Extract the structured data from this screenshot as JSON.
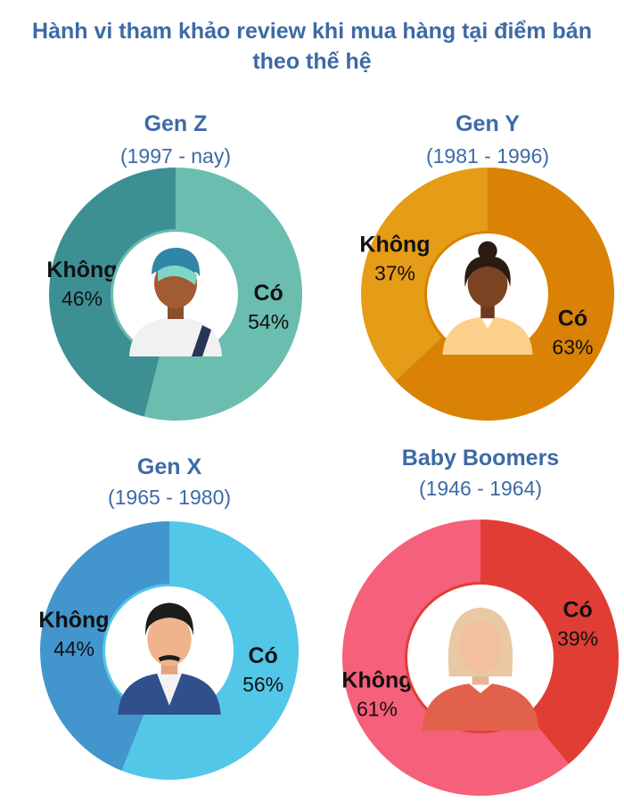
{
  "title_line1": "Hành vi tham khảo review khi mua hàng tại điểm bán",
  "title_line2": "theo thế hệ",
  "chart_data": [
    {
      "type": "pie",
      "title": "Gen Z",
      "subtitle": "(1997 - nay)",
      "categories": [
        "Có",
        "Không"
      ],
      "values": [
        54,
        46
      ],
      "value_labels": [
        "54%",
        "46%"
      ],
      "colors": [
        "#6bbdaf",
        "#3c9094"
      ],
      "avatar": "young-man-avatar-icon"
    },
    {
      "type": "pie",
      "title": "Gen Y",
      "subtitle": "(1981 - 1996)",
      "categories": [
        "Có",
        "Không"
      ],
      "values": [
        63,
        37
      ],
      "value_labels": [
        "63%",
        "37%"
      ],
      "colors": [
        "#d98205",
        "#e59c16"
      ],
      "avatar": "woman-avatar-icon"
    },
    {
      "type": "pie",
      "title": "Gen X",
      "subtitle": "(1965 - 1980)",
      "categories": [
        "Có",
        "Không"
      ],
      "values": [
        56,
        44
      ],
      "value_labels": [
        "56%",
        "44%"
      ],
      "colors": [
        "#53c7e8",
        "#4395ce"
      ],
      "avatar": "man-avatar-icon"
    },
    {
      "type": "pie",
      "title": "Baby Boomers",
      "subtitle": "(1946 - 1964)",
      "categories": [
        "Có",
        "Không"
      ],
      "values": [
        39,
        61
      ],
      "value_labels": [
        "39%",
        "61%"
      ],
      "colors": [
        "#e03e34",
        "#f5607a"
      ],
      "avatar": "elderly-woman-avatar-icon"
    }
  ]
}
